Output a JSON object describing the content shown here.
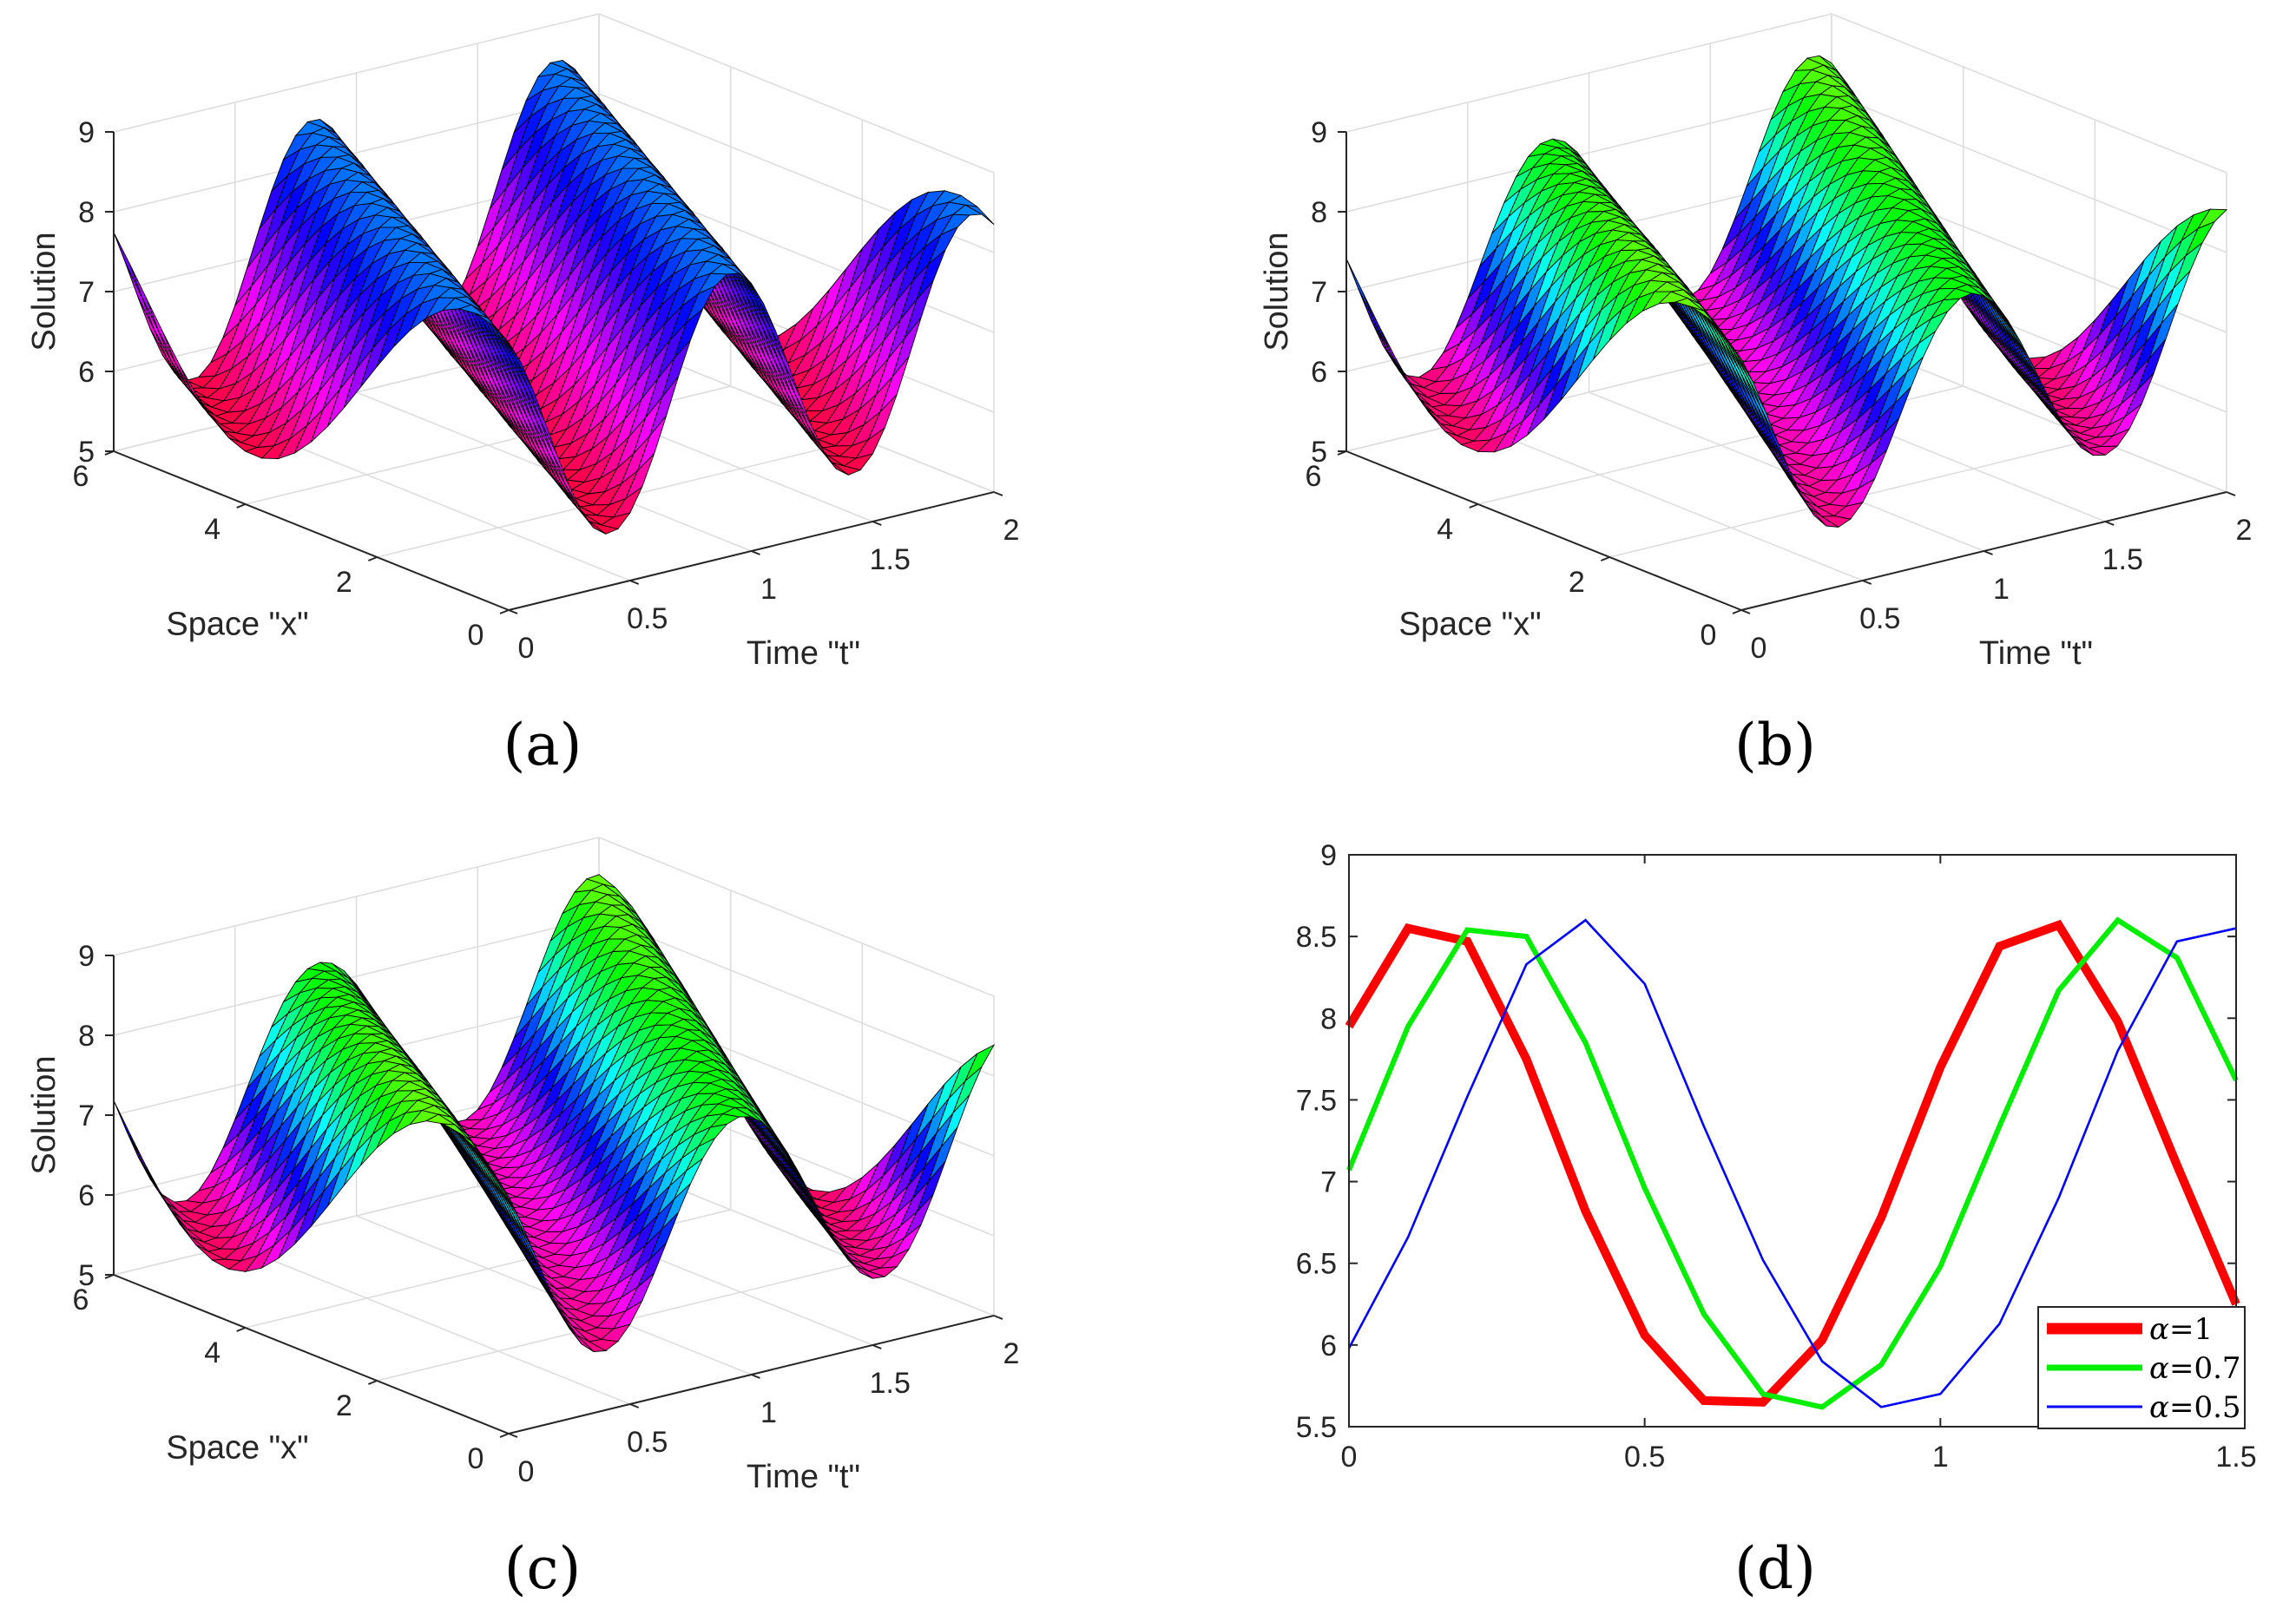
{
  "colors": {
    "alpha_1": "#ff0000",
    "alpha_0_7": "#00ee00",
    "alpha_0_5": "#0000ff",
    "axis": "#262626",
    "grid": "#dcdcdc"
  },
  "chart_data": [
    {
      "panel": "(a)",
      "type": "surface",
      "caption": "(a)",
      "xlabel": "Time \"t\"",
      "ylabel": "Space \"x\"",
      "zlabel": "Solution",
      "xlim": [
        0,
        2
      ],
      "ylim": [
        0,
        6
      ],
      "zlim": [
        5,
        9
      ],
      "xticks": [
        "0",
        "0.5",
        "1",
        "1.5",
        "2"
      ],
      "yticks": [
        "0",
        "2",
        "4",
        "6"
      ],
      "zticks": [
        "5",
        "6",
        "7",
        "8",
        "9"
      ],
      "alpha": 1,
      "grid": true
    },
    {
      "panel": "(b)",
      "type": "surface",
      "caption": "(b)",
      "xlabel": "Time \"t\"",
      "ylabel": "Space \"x\"",
      "zlabel": "Solution",
      "xlim": [
        0,
        2
      ],
      "ylim": [
        0,
        6
      ],
      "zlim": [
        5,
        9
      ],
      "xticks": [
        "0",
        "0.5",
        "1",
        "1.5",
        "2"
      ],
      "yticks": [
        "0",
        "2",
        "4",
        "6"
      ],
      "zticks": [
        "5",
        "6",
        "7",
        "8",
        "9"
      ],
      "alpha": 0.7,
      "grid": true
    },
    {
      "panel": "(c)",
      "type": "surface",
      "caption": "(c)",
      "xlabel": "Time \"t\"",
      "ylabel": "Space \"x\"",
      "zlabel": "Solution",
      "xlim": [
        0,
        2
      ],
      "ylim": [
        0,
        6
      ],
      "zlim": [
        5,
        9
      ],
      "xticks": [
        "0",
        "0.5",
        "1",
        "1.5",
        "2"
      ],
      "yticks": [
        "0",
        "2",
        "4",
        "6"
      ],
      "zticks": [
        "5",
        "6",
        "7",
        "8",
        "9"
      ],
      "alpha": 0.5,
      "grid": true
    },
    {
      "panel": "(d)",
      "type": "line",
      "caption": "(d)",
      "xlim": [
        0,
        1.5
      ],
      "ylim": [
        5.5,
        9
      ],
      "xticks": [
        "0",
        "0.5",
        "1",
        "1.5"
      ],
      "yticks": [
        "5.5",
        "6",
        "6.5",
        "7",
        "7.5",
        "8",
        "8.5",
        "9"
      ],
      "legend_position": "bottom-right",
      "x": [
        0,
        0.1,
        0.2,
        0.3,
        0.4,
        0.5,
        0.6,
        0.7,
        0.8,
        0.9,
        1.0,
        1.1,
        1.2,
        1.3,
        1.4,
        1.5
      ],
      "series": [
        {
          "name": "α=1",
          "legend_alpha": "α",
          "legend_value": "=1",
          "color": "#ff0000",
          "width": "thick",
          "values": [
            7.95,
            8.55,
            8.47,
            7.75,
            6.82,
            6.06,
            5.66,
            5.65,
            6.03,
            6.78,
            7.7,
            8.44,
            8.57,
            7.98,
            7.1,
            6.25
          ]
        },
        {
          "name": "α=0.7",
          "legend_alpha": "α",
          "legend_value": "=0.7",
          "color": "#00ee00",
          "width": "medium",
          "values": [
            7.07,
            7.95,
            8.54,
            8.5,
            7.85,
            6.96,
            6.19,
            5.7,
            5.62,
            5.88,
            6.48,
            7.34,
            8.17,
            8.6,
            8.37,
            7.62
          ]
        },
        {
          "name": "α=0.5",
          "legend_alpha": "α",
          "legend_value": "=0.5",
          "color": "#0000ff",
          "width": "thin",
          "values": [
            5.98,
            6.66,
            7.52,
            8.33,
            8.6,
            8.21,
            7.34,
            6.52,
            5.9,
            5.62,
            5.7,
            6.13,
            6.9,
            7.8,
            8.47,
            8.55
          ]
        }
      ]
    }
  ]
}
